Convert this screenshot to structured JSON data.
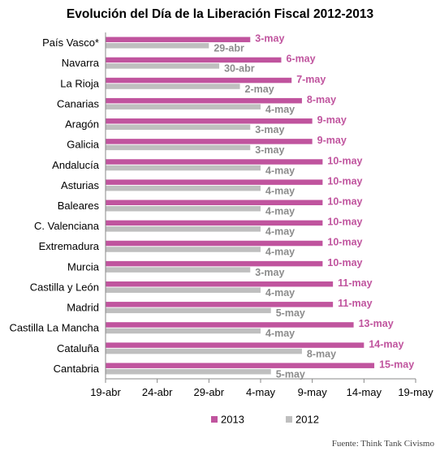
{
  "chart_data": {
    "type": "bar",
    "orientation": "horizontal",
    "title": "Evolución del Día de la Liberación Fiscal 2012-2013",
    "categories": [
      "País Vasco*",
      "Navarra",
      "La Rioja",
      "Canarias",
      "Aragón",
      "Galicia",
      "Andalucía",
      "Asturias",
      "Baleares",
      "C. Valenciana",
      "Extremadura",
      "Murcia",
      "Castilla y León",
      "Madrid",
      "Castilla La Mancha",
      "Cataluña",
      "Cantabria"
    ],
    "series": [
      {
        "name": "2013",
        "color": "#C0549E",
        "values": [
          "2013-05-03",
          "2013-05-06",
          "2013-05-07",
          "2013-05-08",
          "2013-05-09",
          "2013-05-09",
          "2013-05-10",
          "2013-05-10",
          "2013-05-10",
          "2013-05-10",
          "2013-05-10",
          "2013-05-10",
          "2013-05-11",
          "2013-05-11",
          "2013-05-13",
          "2013-05-14",
          "2013-05-15"
        ],
        "labels": [
          "3-may",
          "6-may",
          "7-may",
          "8-may",
          "9-may",
          "9-may",
          "10-may",
          "10-may",
          "10-may",
          "10-may",
          "10-may",
          "10-may",
          "11-may",
          "11-may",
          "13-may",
          "14-may",
          "15-may"
        ]
      },
      {
        "name": "2012",
        "color": "#BFBFBF",
        "values": [
          "2013-04-29",
          "2013-04-30",
          "2013-05-02",
          "2013-05-04",
          "2013-05-03",
          "2013-05-03",
          "2013-05-04",
          "2013-05-04",
          "2013-05-04",
          "2013-05-04",
          "2013-05-04",
          "2013-05-03",
          "2013-05-04",
          "2013-05-05",
          "2013-05-04",
          "2013-05-08",
          "2013-05-05"
        ],
        "labels": [
          "29-abr",
          "30-abr",
          "2-may",
          "4-may",
          "3-may",
          "3-may",
          "4-may",
          "4-may",
          "4-may",
          "4-may",
          "4-may",
          "3-may",
          "4-may",
          "5-may",
          "4-may",
          "8-may",
          "5-may"
        ]
      }
    ],
    "x_ticks": [
      "19-abr",
      "24-abr",
      "29-abr",
      "4-may",
      "9-may",
      "14-may",
      "19-may"
    ],
    "xlim": [
      "2013-04-19",
      "2013-05-19"
    ],
    "xlabel": "",
    "ylabel": "",
    "grid": false,
    "legend_position": "bottom",
    "source": "Fuente: Think Tank Civismo"
  }
}
